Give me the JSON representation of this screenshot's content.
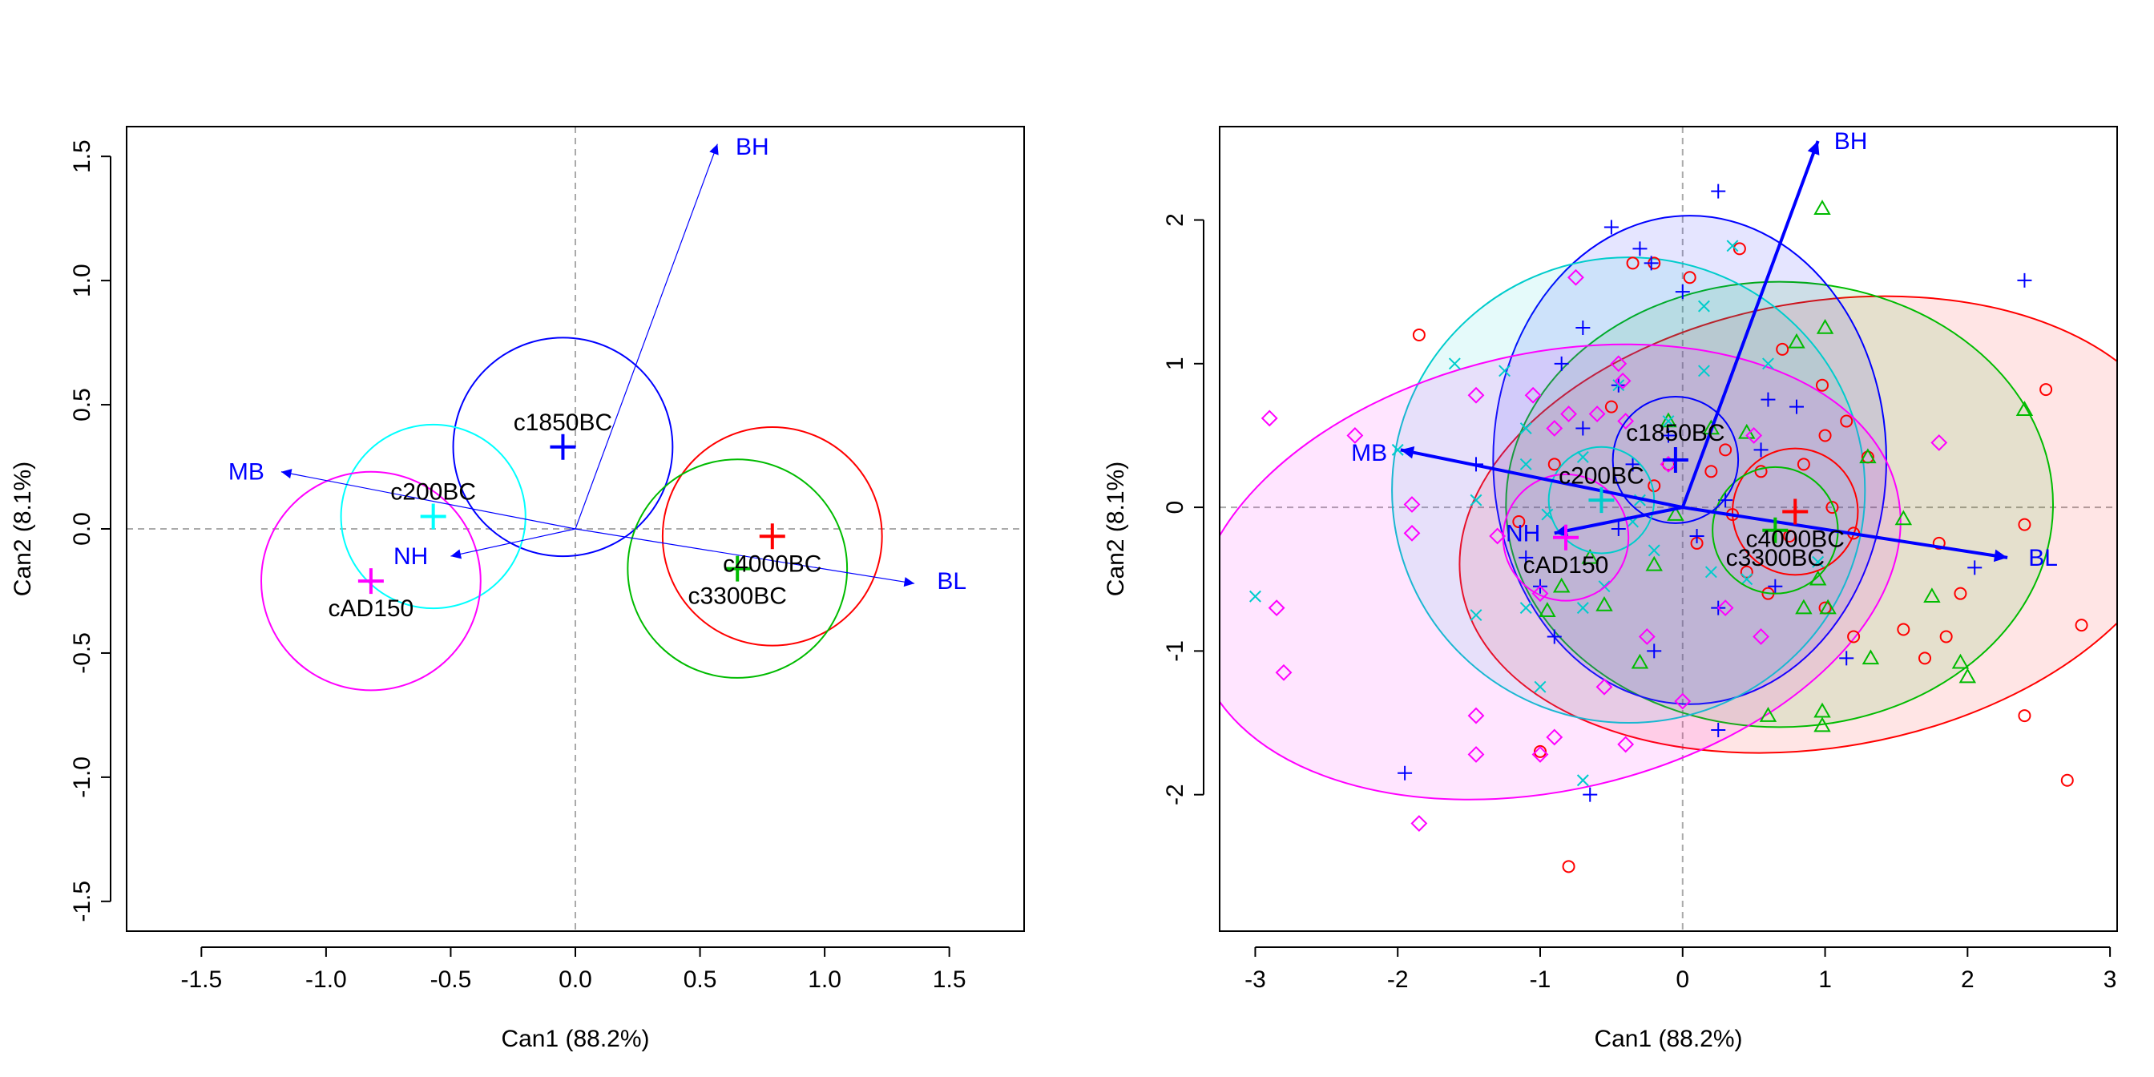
{
  "chart_data": [
    {
      "type": "scatter",
      "panel": "left",
      "xlabel": "Can1 (88.2%)",
      "ylabel": "Can2 (8.1%)",
      "xlim": [
        -1.8,
        1.8
      ],
      "ylim": [
        -1.62,
        1.62
      ],
      "xticks": [
        -1.5,
        -1.0,
        -0.5,
        0.0,
        0.5,
        1.0,
        1.5
      ],
      "xtick_labels": [
        "-1.5",
        "-1.0",
        "-0.5",
        "0.0",
        "0.5",
        "1.0",
        "1.5"
      ],
      "yticks": [
        -1.5,
        -1.0,
        -0.5,
        0.0,
        0.5,
        1.0,
        1.5
      ],
      "ytick_labels": [
        "-1.5",
        "-1.0",
        "-0.5",
        "0.0",
        "0.5",
        "1.0",
        "1.5"
      ],
      "reference_lines": {
        "x": 0,
        "y": 0,
        "style": "dashed"
      },
      "groups": [
        {
          "label": "c1850BC",
          "color": "#0000ff",
          "mean": [
            -0.05,
            0.33
          ],
          "radius": 0.44,
          "label_pos": [
            -0.05,
            0.43
          ],
          "label_anchor": "middle"
        },
        {
          "label": "c200BC",
          "color": "#00ffff",
          "mean": [
            -0.57,
            0.05
          ],
          "radius": 0.37,
          "label_pos": [
            -0.57,
            0.15
          ],
          "label_anchor": "middle"
        },
        {
          "label": "cAD150",
          "color": "#ff00ff",
          "mean": [
            -0.82,
            -0.21
          ],
          "radius": 0.44,
          "label_pos": [
            -0.82,
            -0.32
          ],
          "label_anchor": "middle"
        },
        {
          "label": "c4000BC",
          "color": "#ff0000",
          "mean": [
            0.79,
            -0.03
          ],
          "radius": 0.44,
          "label_pos": [
            0.79,
            -0.14
          ],
          "label_anchor": "middle"
        },
        {
          "label": "c3300BC",
          "color": "#00bb00",
          "mean": [
            0.65,
            -0.16
          ],
          "radius": 0.44,
          "label_pos": [
            0.65,
            -0.27
          ],
          "label_anchor": "middle"
        }
      ],
      "vectors": [
        {
          "label": "BH",
          "end": [
            0.57,
            1.55
          ],
          "label_pos": [
            0.71,
            1.54
          ]
        },
        {
          "label": "MB",
          "end": [
            -1.18,
            0.23
          ],
          "label_pos": [
            -1.32,
            0.23
          ]
        },
        {
          "label": "NH",
          "end": [
            -0.5,
            -0.11
          ],
          "label_pos": [
            -0.66,
            -0.11
          ]
        },
        {
          "label": "BL",
          "end": [
            1.36,
            -0.22
          ],
          "label_pos": [
            1.51,
            -0.21
          ]
        }
      ],
      "vector_color": "#0000ff"
    },
    {
      "type": "scatter",
      "panel": "right",
      "xlabel": "Can1 (88.2%)",
      "ylabel": "Can2 (8.1%)",
      "xlim": [
        -3.25,
        3.05
      ],
      "ylim": [
        -2.95,
        2.65
      ],
      "xticks": [
        -3,
        -2,
        -1,
        0,
        1,
        2,
        3
      ],
      "xtick_labels": [
        "-3",
        "-2",
        "-1",
        "0",
        "1",
        "2",
        "3"
      ],
      "yticks": [
        -2,
        -1,
        0,
        1,
        2
      ],
      "ytick_labels": [
        "-2",
        "-1",
        "0",
        "1",
        "2"
      ],
      "reference_lines": {
        "x": 0,
        "y": 0,
        "style": "dashed"
      },
      "groups": [
        {
          "label": "c4000BC",
          "color": "#ff0000",
          "marker": "circle",
          "mean": [
            0.79,
            -0.03
          ],
          "radius": 0.44,
          "ellipse": {
            "cx": 0.98,
            "cy": -0.12,
            "rx": 2.57,
            "ry": 1.55,
            "angle": -10
          },
          "label_pos": [
            0.79,
            -0.22
          ],
          "label_anchor": "middle",
          "points": [
            [
              0.4,
              1.8
            ],
            [
              -0.2,
              1.7
            ],
            [
              0.05,
              1.6
            ],
            [
              -0.35,
              1.7
            ],
            [
              0.7,
              1.1
            ],
            [
              0.98,
              0.85
            ],
            [
              1.3,
              0.35
            ],
            [
              1.15,
              0.6
            ],
            [
              0.85,
              0.3
            ],
            [
              0.55,
              0.25
            ],
            [
              0.35,
              -0.05
            ],
            [
              0.1,
              -0.25
            ],
            [
              0.6,
              -0.6
            ],
            [
              1.0,
              -0.7
            ],
            [
              1.2,
              -0.9
            ],
            [
              1.55,
              -0.85
            ],
            [
              1.7,
              -1.05
            ],
            [
              1.8,
              -0.25
            ],
            [
              1.95,
              -0.6
            ],
            [
              2.4,
              -0.12
            ],
            [
              2.55,
              0.82
            ],
            [
              2.8,
              -0.82
            ],
            [
              2.7,
              -1.9
            ],
            [
              2.4,
              -1.45
            ],
            [
              1.0,
              0.5
            ],
            [
              0.75,
              -0.2
            ],
            [
              1.05,
              0.0
            ],
            [
              0.2,
              0.25
            ],
            [
              -0.2,
              0.15
            ],
            [
              -0.5,
              0.7
            ],
            [
              -0.9,
              0.3
            ],
            [
              -1.15,
              -0.1
            ],
            [
              -1.85,
              1.2
            ],
            [
              -1.0,
              -1.7
            ],
            [
              -0.8,
              -2.5
            ],
            [
              -0.1,
              0.3
            ],
            [
              0.45,
              -0.45
            ],
            [
              1.2,
              -0.18
            ],
            [
              1.85,
              -0.9
            ],
            [
              0.3,
              0.4
            ]
          ]
        },
        {
          "label": "c3300BC",
          "color": "#00bb00",
          "marker": "triangle",
          "mean": [
            0.65,
            -0.16
          ],
          "radius": 0.44,
          "ellipse": {
            "cx": 0.68,
            "cy": 0.02,
            "rx": 1.92,
            "ry": 1.55,
            "angle": 0
          },
          "label_pos": [
            0.65,
            -0.35
          ],
          "label_anchor": "middle",
          "points": [
            [
              0.98,
              2.08
            ],
            [
              1.0,
              1.25
            ],
            [
              0.8,
              1.15
            ],
            [
              1.3,
              0.35
            ],
            [
              1.55,
              -0.08
            ],
            [
              1.75,
              -0.62
            ],
            [
              1.95,
              -1.08
            ],
            [
              2.0,
              -1.18
            ],
            [
              2.4,
              0.68
            ],
            [
              1.32,
              -1.05
            ],
            [
              1.02,
              -0.7
            ],
            [
              0.85,
              -0.7
            ],
            [
              0.98,
              -1.42
            ],
            [
              0.98,
              -1.52
            ],
            [
              0.6,
              -1.45
            ],
            [
              0.45,
              0.52
            ],
            [
              0.2,
              0.55
            ],
            [
              -0.05,
              -0.05
            ],
            [
              -0.2,
              -0.4
            ],
            [
              -0.3,
              -1.08
            ],
            [
              -0.55,
              -0.68
            ],
            [
              -0.65,
              -0.35
            ],
            [
              -0.85,
              -0.55
            ],
            [
              -0.95,
              -0.72
            ],
            [
              -0.1,
              0.6
            ],
            [
              0.95,
              -0.5
            ]
          ]
        },
        {
          "label": "c1850BC",
          "color": "#0000ff",
          "marker": "plus",
          "mean": [
            -0.05,
            0.33
          ],
          "radius": 0.44,
          "ellipse": {
            "cx": 0.05,
            "cy": 0.33,
            "rx": 1.38,
            "ry": 1.7,
            "angle": 0
          },
          "label_pos": [
            -0.05,
            0.52
          ],
          "label_anchor": "middle",
          "points": [
            [
              0.25,
              2.2
            ],
            [
              -0.5,
              1.95
            ],
            [
              -0.3,
              1.8
            ],
            [
              -0.22,
              1.7
            ],
            [
              0.0,
              1.5
            ],
            [
              -0.7,
              1.25
            ],
            [
              -0.85,
              1.0
            ],
            [
              -0.45,
              0.85
            ],
            [
              -0.7,
              0.55
            ],
            [
              0.6,
              0.75
            ],
            [
              0.8,
              0.7
            ],
            [
              -0.1,
              0.5
            ],
            [
              0.55,
              0.4
            ],
            [
              -0.35,
              0.3
            ],
            [
              -1.45,
              0.3
            ],
            [
              -0.45,
              -0.15
            ],
            [
              0.1,
              -0.2
            ],
            [
              0.25,
              -0.7
            ],
            [
              0.65,
              -0.55
            ],
            [
              -0.2,
              -1.0
            ],
            [
              -0.9,
              -0.9
            ],
            [
              -1.0,
              -0.55
            ],
            [
              -1.95,
              -1.85
            ],
            [
              -0.65,
              -2.0
            ],
            [
              0.25,
              -1.55
            ],
            [
              1.15,
              -1.05
            ],
            [
              2.05,
              -0.42
            ],
            [
              2.4,
              1.58
            ],
            [
              0.3,
              0.05
            ],
            [
              -1.1,
              -0.35
            ]
          ]
        },
        {
          "label": "c200BC",
          "color": "#00cccc",
          "marker": "x",
          "mean": [
            -0.57,
            0.05
          ],
          "radius": 0.37,
          "ellipse": {
            "cx": -0.38,
            "cy": 0.12,
            "rx": 1.66,
            "ry": 1.62,
            "angle": 0
          },
          "label_pos": [
            -0.57,
            0.22
          ],
          "label_anchor": "middle",
          "points": [
            [
              -3.0,
              -0.62
            ],
            [
              0.35,
              1.82
            ],
            [
              0.15,
              1.4
            ],
            [
              -1.6,
              1.0
            ],
            [
              -1.25,
              0.95
            ],
            [
              -0.7,
              0.35
            ],
            [
              -0.45,
              0.85
            ],
            [
              -1.1,
              0.3
            ],
            [
              -2.0,
              0.4
            ],
            [
              -1.45,
              -0.75
            ],
            [
              -1.0,
              -1.25
            ],
            [
              -0.7,
              -1.9
            ],
            [
              -0.35,
              -0.1
            ],
            [
              -0.3,
              0.05
            ],
            [
              0.45,
              -0.5
            ],
            [
              -1.1,
              -0.7
            ],
            [
              -0.7,
              -0.7
            ],
            [
              -0.55,
              -0.55
            ],
            [
              0.2,
              -0.45
            ],
            [
              -0.2,
              -0.3
            ],
            [
              -1.45,
              0.05
            ],
            [
              0.15,
              0.95
            ],
            [
              0.6,
              1.0
            ],
            [
              -1.1,
              0.55
            ],
            [
              0.95,
              -0.38
            ],
            [
              -0.95,
              -0.05
            ],
            [
              -0.1,
              0.6
            ]
          ]
        },
        {
          "label": "cAD150",
          "color": "#ff00ff",
          "marker": "diamond",
          "mean": [
            -0.82,
            -0.21
          ],
          "radius": 0.44,
          "ellipse": {
            "cx": -0.95,
            "cy": -0.45,
            "rx": 2.52,
            "ry": 1.52,
            "angle": -13
          },
          "label_pos": [
            -0.82,
            -0.4
          ],
          "label_anchor": "middle",
          "points": [
            [
              -2.9,
              0.62
            ],
            [
              -2.3,
              0.5
            ],
            [
              -2.85,
              -0.7
            ],
            [
              -2.8,
              -1.15
            ],
            [
              -1.9,
              0.02
            ],
            [
              -1.9,
              -0.18
            ],
            [
              -1.45,
              0.78
            ],
            [
              -1.05,
              0.78
            ],
            [
              -0.8,
              0.65
            ],
            [
              -0.45,
              1.0
            ],
            [
              -0.42,
              0.88
            ],
            [
              -0.4,
              0.6
            ],
            [
              -0.1,
              0.3
            ],
            [
              0.5,
              0.5
            ],
            [
              0.3,
              -0.7
            ],
            [
              0.55,
              -0.9
            ],
            [
              -1.45,
              -1.45
            ],
            [
              -1.45,
              -1.72
            ],
            [
              -1.0,
              -1.72
            ],
            [
              -0.9,
              -1.6
            ],
            [
              -0.4,
              -1.65
            ],
            [
              -0.55,
              -1.25
            ],
            [
              -1.85,
              -2.2
            ],
            [
              -0.0,
              -1.35
            ],
            [
              1.8,
              0.45
            ],
            [
              -0.9,
              0.55
            ],
            [
              -0.6,
              0.65
            ],
            [
              -1.3,
              -0.2
            ],
            [
              -0.75,
              1.6
            ],
            [
              -1.0,
              -0.6
            ],
            [
              -0.25,
              -0.9
            ]
          ]
        }
      ],
      "vectors": [
        {
          "label": "BH",
          "end": [
            0.95,
            2.55
          ],
          "label_pos": [
            1.18,
            2.55
          ]
        },
        {
          "label": "MB",
          "end": [
            -1.98,
            0.4
          ],
          "label_pos": [
            -2.2,
            0.38
          ]
        },
        {
          "label": "NH",
          "end": [
            -0.9,
            -0.18
          ],
          "label_pos": [
            -1.12,
            -0.18
          ]
        },
        {
          "label": "BL",
          "end": [
            2.28,
            -0.35
          ],
          "label_pos": [
            2.53,
            -0.35
          ]
        }
      ],
      "vector_color": "#0000ff"
    }
  ]
}
